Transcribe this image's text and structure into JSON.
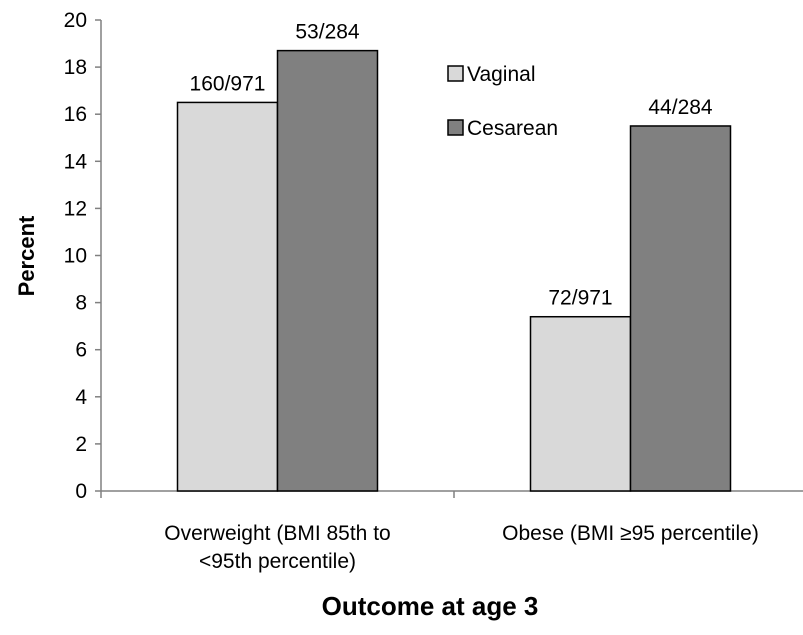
{
  "chart_data": {
    "type": "bar",
    "title": "",
    "xlabel": "Outcome at age 3",
    "ylabel": "Percent",
    "ylim": [
      0,
      20
    ],
    "yticks": [
      0,
      2,
      4,
      6,
      8,
      10,
      12,
      14,
      16,
      18,
      20
    ],
    "categories": [
      [
        "Overweight (BMI 85th to",
        "<95th percentile)"
      ],
      [
        "Obese (BMI ≥95 percentile)"
      ]
    ],
    "series": [
      {
        "name": "Vaginal",
        "color": "#d9d9d9",
        "values": [
          16.5,
          7.4
        ],
        "labels": [
          "160/971",
          "72/971"
        ]
      },
      {
        "name": "Cesarean",
        "color": "#808080",
        "values": [
          18.7,
          15.5
        ],
        "labels": [
          "53/284",
          "44/284"
        ]
      }
    ],
    "legend": "right",
    "grid": false
  }
}
